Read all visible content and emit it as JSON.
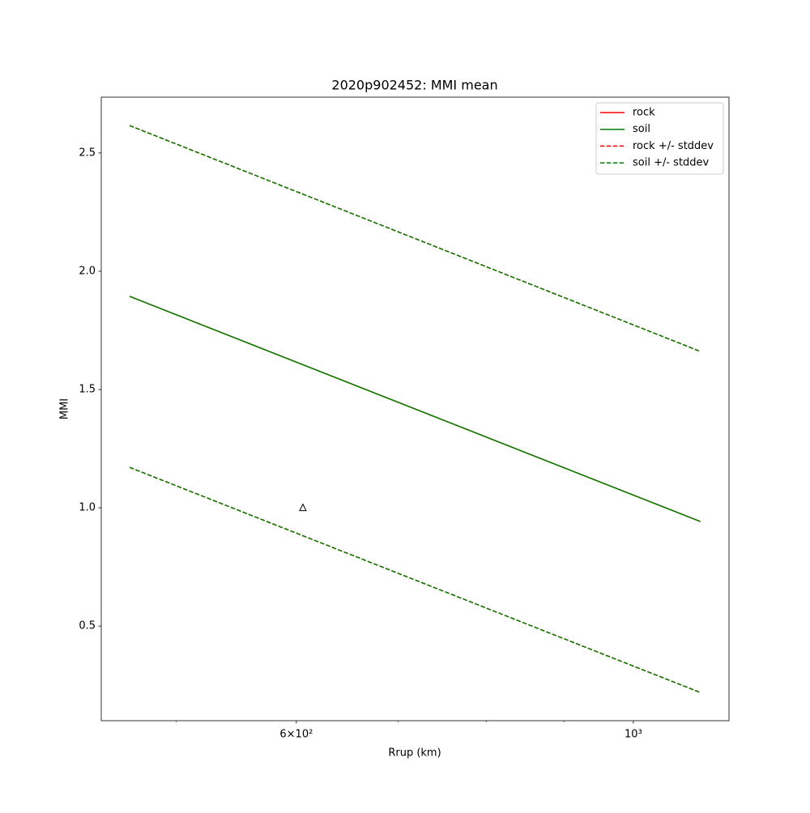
{
  "chart_data": {
    "type": "line",
    "title": "2020p902452: MMI mean",
    "xlabel": "Rrup (km)",
    "ylabel": "MMI",
    "xscale": "log",
    "x": [
      466,
      1107
    ],
    "xlim": [
      446.4,
      1156
    ],
    "ylim": [
      0.1,
      2.736
    ],
    "xticks": [
      {
        "value": 600,
        "label": "6×10²"
      },
      {
        "value": 1000,
        "label": "10³"
      }
    ],
    "xminorticks": [
      500,
      700,
      800,
      900
    ],
    "yticks": [
      0.5,
      {
        "value": 1,
        "label": "1.0"
      },
      1.5,
      {
        "value": 2,
        "label": "2.0"
      },
      2.5
    ],
    "legend": "upper right",
    "series": [
      {
        "name": "rock",
        "color": "#ff0000",
        "style": "solid",
        "values": [
          1.894,
          0.942
        ]
      },
      {
        "name": "soil",
        "color": "#008000",
        "style": "solid",
        "values": [
          1.894,
          0.942
        ]
      },
      {
        "name": "rock +/- stddev",
        "color": "#ff0000",
        "style": "dashed",
        "upper": [
          2.616,
          1.661
        ],
        "lower": [
          1.171,
          0.219
        ]
      },
      {
        "name": "soil +/- stddev",
        "color": "#008000",
        "style": "dashed",
        "upper": [
          2.616,
          1.661
        ],
        "lower": [
          1.171,
          0.219
        ]
      }
    ],
    "stations": {
      "marker": "triangle",
      "color": "#000000",
      "x": [
        606
      ],
      "y": [
        1.0
      ]
    }
  }
}
